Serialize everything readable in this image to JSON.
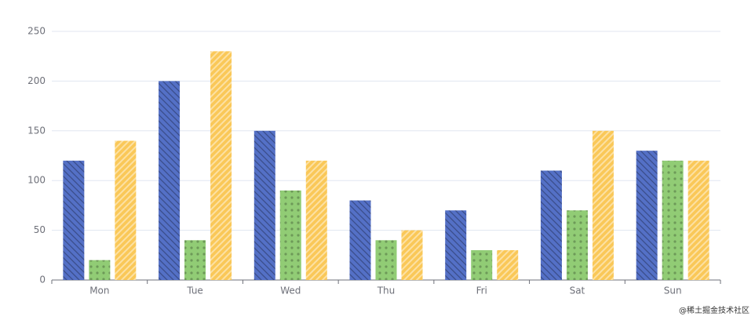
{
  "chart_data": {
    "type": "bar",
    "categories": [
      "Mon",
      "Tue",
      "Wed",
      "Thu",
      "Fri",
      "Sat",
      "Sun"
    ],
    "series": [
      {
        "color": "#5470c6",
        "pattern": "back-stripe",
        "values": [
          120,
          200,
          150,
          80,
          70,
          110,
          130
        ]
      },
      {
        "color": "#91cc75",
        "pattern": "dots",
        "values": [
          20,
          40,
          90,
          40,
          30,
          70,
          120
        ]
      },
      {
        "color": "#fac858",
        "pattern": "stripe",
        "values": [
          140,
          230,
          120,
          50,
          30,
          150,
          120
        ]
      }
    ],
    "ylim": [
      0,
      250
    ],
    "yticks": [
      0,
      50,
      100,
      150,
      200,
      250
    ],
    "grid": true,
    "watermark": "@稀土掘金技术社区"
  }
}
